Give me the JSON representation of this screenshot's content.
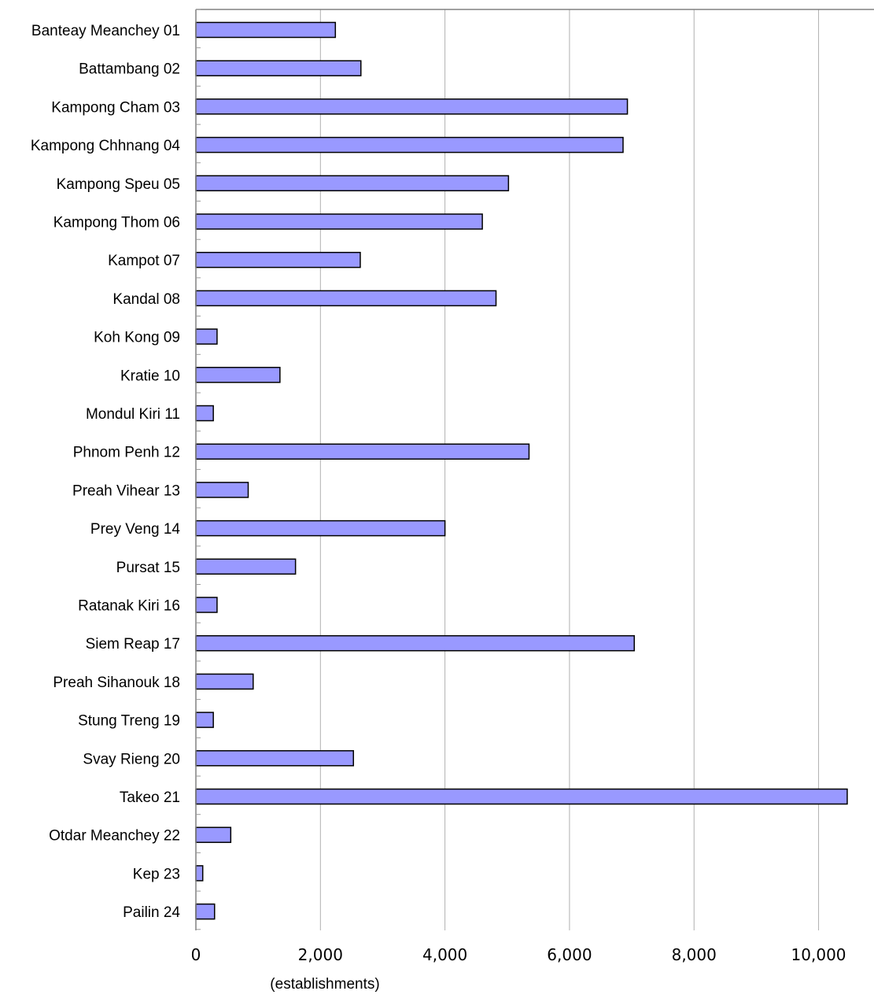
{
  "chart_data": {
    "type": "bar",
    "orientation": "horizontal",
    "categories": [
      "Banteay Meanchey 01",
      "Battambang 02",
      "Kampong Cham 03",
      "Kampong Chhnang 04",
      "Kampong Speu 05",
      "Kampong Thom 06",
      "Kampot 07",
      "Kandal 08",
      "Koh Kong 09",
      "Kratie 10",
      "Mondul Kiri 11",
      "Phnom Penh 12",
      "Preah Vihear 13",
      "Prey Veng 14",
      "Pursat 15",
      "Ratanak Kiri 16",
      "Siem Reap 17",
      "Preah Sihanouk 18",
      "Stung Treng 19",
      "Svay Rieng 20",
      "Takeo 21",
      "Otdar Meanchey 22",
      "Kep 23",
      "Pailin 24"
    ],
    "values": [
      2240,
      2650,
      6930,
      6860,
      5020,
      4600,
      2640,
      4820,
      340,
      1350,
      280,
      5350,
      840,
      4000,
      1600,
      340,
      7040,
      920,
      280,
      2530,
      10460,
      560,
      110,
      300
    ],
    "xlabel": "(establishments)",
    "ylabel": "",
    "xlim": [
      0,
      10890
    ],
    "xticks": [
      "0",
      "2,000",
      "4,000",
      "6,000",
      "8,000",
      "10,000"
    ],
    "xtick_values": [
      0,
      2000,
      4000,
      6000,
      8000,
      10000
    ],
    "grid": "vertical",
    "colors": {
      "bar_fill": "#9999ff",
      "bar_stroke": "#000000",
      "grid": "#b0b0b0",
      "axis": "#808080"
    }
  }
}
